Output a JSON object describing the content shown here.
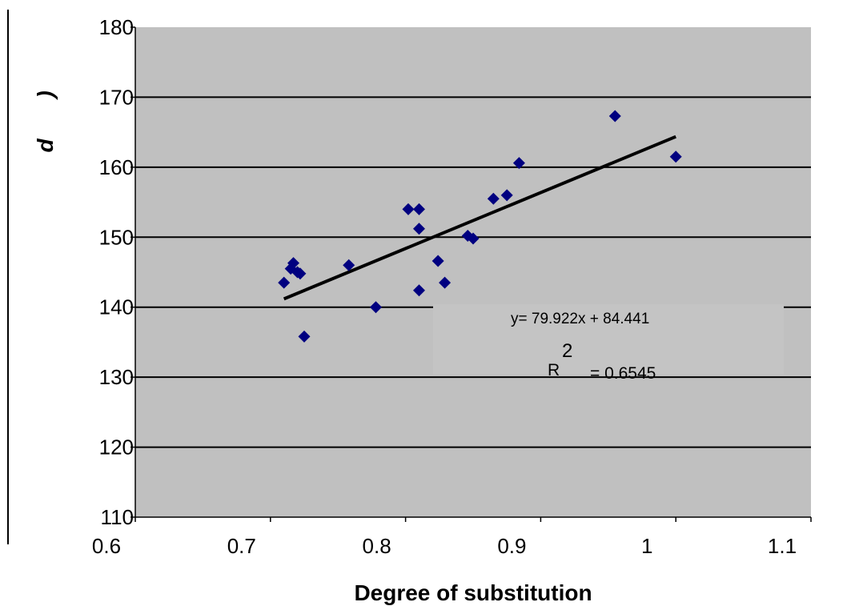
{
  "chart_data": {
    "type": "scatter",
    "title": "",
    "xlabel": "Degree of substitution",
    "ylabel_parts": [
      "d",
      ")"
    ],
    "xlim": [
      0.6,
      1.1
    ],
    "ylim": [
      110,
      180
    ],
    "x_ticks": [
      0.6,
      0.7,
      0.8,
      0.9,
      1,
      1.1
    ],
    "x_tick_labels": [
      "0.6",
      "0.7",
      "0.8",
      "0.9",
      "1",
      "1.1"
    ],
    "y_ticks": [
      110,
      120,
      130,
      140,
      150,
      160,
      170,
      180
    ],
    "y_tick_labels": [
      "110",
      "120",
      "130",
      "140",
      "150",
      "160",
      "170",
      "180"
    ],
    "grid": "horizontal",
    "plot_background": "#c0c0c0",
    "marker_color": "#000080",
    "marker": "diamond",
    "points": [
      {
        "x": 0.71,
        "y": 143.5
      },
      {
        "x": 0.715,
        "y": 145.5
      },
      {
        "x": 0.717,
        "y": 146.3
      },
      {
        "x": 0.72,
        "y": 145.0
      },
      {
        "x": 0.722,
        "y": 144.8
      },
      {
        "x": 0.725,
        "y": 135.8
      },
      {
        "x": 0.758,
        "y": 146.0
      },
      {
        "x": 0.778,
        "y": 140.0
      },
      {
        "x": 0.802,
        "y": 154.0
      },
      {
        "x": 0.81,
        "y": 154.0
      },
      {
        "x": 0.81,
        "y": 151.2
      },
      {
        "x": 0.81,
        "y": 142.4
      },
      {
        "x": 0.824,
        "y": 146.6
      },
      {
        "x": 0.829,
        "y": 143.5
      },
      {
        "x": 0.846,
        "y": 150.2
      },
      {
        "x": 0.85,
        "y": 149.8
      },
      {
        "x": 0.865,
        "y": 155.5
      },
      {
        "x": 0.875,
        "y": 156.0
      },
      {
        "x": 0.884,
        "y": 160.6
      },
      {
        "x": 0.955,
        "y": 167.3
      },
      {
        "x": 1.0,
        "y": 161.5
      }
    ],
    "trendline": {
      "type": "linear",
      "slope": 79.922,
      "intercept": 84.441,
      "x_range": [
        0.71,
        1.0
      ],
      "color": "#000000"
    },
    "equation_text": "y= 79.922x + 84.441",
    "r2_label": "R",
    "r2_sup": "2",
    "r2_value": "= 0.6545"
  }
}
